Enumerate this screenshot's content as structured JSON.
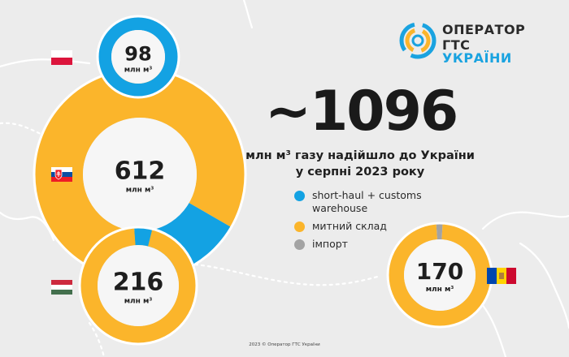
{
  "header": {
    "logo_line1": "ОПЕРАТОР",
    "logo_line2_a": "ГТС ",
    "logo_line2_b": "УКРАЇНИ"
  },
  "total": {
    "value": "~1096",
    "caption_line1": "млн м³ газу надійшло до України",
    "caption_line2": "у серпні 2023 року"
  },
  "colors": {
    "short_haul": "#13a2e3",
    "customs": "#fbb52b",
    "import": "#a3a3a3",
    "center": "#f6f6f6",
    "background": "#ececec"
  },
  "legend": [
    {
      "label_line1": "short-haul + customs",
      "label_line2": "warehouse",
      "color": "#13a2e3"
    },
    {
      "label_line1": "митний склад",
      "label_line2": "",
      "color": "#fbb52b"
    },
    {
      "label_line1": "імпорт",
      "label_line2": "",
      "color": "#a3a3a3"
    }
  ],
  "chart_data": [
    {
      "type": "pie",
      "value_label": "98",
      "unit_label": "млн м³",
      "flag": "Poland",
      "slices": [
        {
          "category": "short-haul + customs warehouse",
          "value": 100
        }
      ]
    },
    {
      "type": "pie",
      "value_label": "612",
      "unit_label": "млн м³",
      "flag": "Slovakia",
      "slices": [
        {
          "category": "short-haul + customs warehouse",
          "value": 15
        },
        {
          "category": "митний склад",
          "value": 85
        }
      ]
    },
    {
      "type": "pie",
      "value_label": "216",
      "unit_label": "млн м³",
      "flag": "Hungary",
      "slices": [
        {
          "category": "short-haul + customs warehouse",
          "value": 5
        },
        {
          "category": "митний склад",
          "value": 95
        }
      ]
    },
    {
      "type": "pie",
      "value_label": "170",
      "unit_label": "млн м³",
      "flag": "Moldova",
      "slices": [
        {
          "category": "імпорт",
          "value": 2
        },
        {
          "category": "митний склад",
          "value": 98
        }
      ]
    }
  ],
  "footer": "2023 © Оператор ГТС України"
}
